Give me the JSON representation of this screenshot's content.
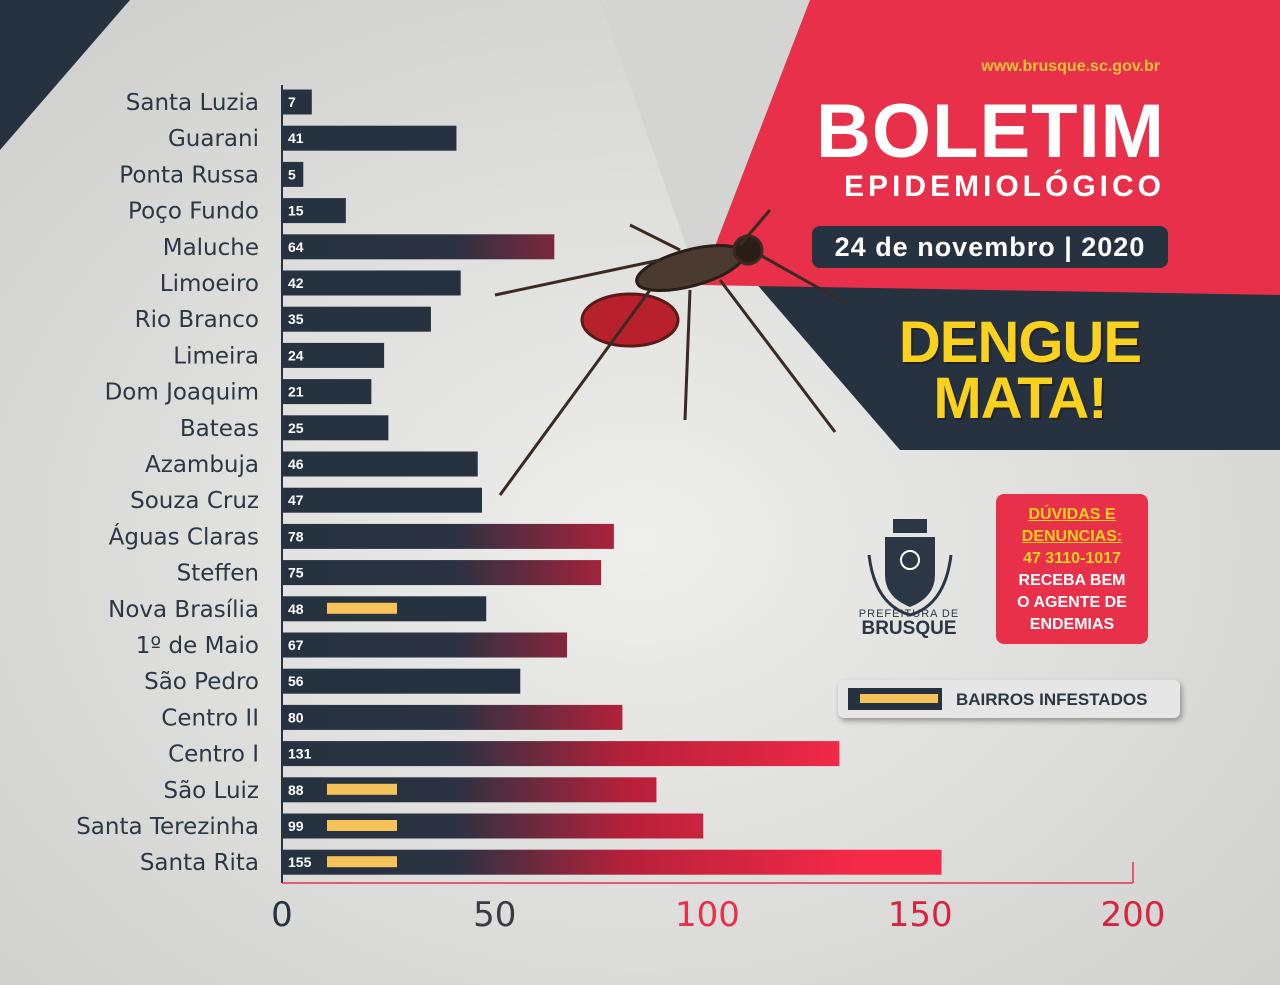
{
  "header": {
    "url": "www.brusque.sc.gov.br",
    "title": "BOLETIM",
    "subtitle": "EPIDEMIOLÓGICO",
    "date": "24 de novembro | 2020",
    "slogan_line1": "DENGUE",
    "slogan_line2": "MATA!"
  },
  "logo": {
    "line1": "PREFEITURA DE",
    "line2": "BRUSQUE"
  },
  "contact": {
    "line1": "DÚVIDAS E",
    "line2": "DENUNCIAS:",
    "phone": "47 3110-1017",
    "line3": "RECEBA BEM",
    "line4": "O AGENTE DE",
    "line5": "ENDEMIAS"
  },
  "legend": {
    "label": "BAIRROS INFESTADOS"
  },
  "colors": {
    "navy": "#263240",
    "red": "#e8304a",
    "yellow": "#f5c35a",
    "slogan": "#f8d21e"
  },
  "chart_data": {
    "type": "bar",
    "orientation": "horizontal",
    "categories": [
      "Santa Luzia",
      "Guarani",
      "Ponta Russa",
      "Poço Fundo",
      "Maluche",
      "Limoeiro",
      "Rio Branco",
      "Limeira",
      "Dom Joaquim",
      "Bateas",
      "Azambuja",
      "Souza Cruz",
      "Águas Claras",
      "Steffen",
      "Nova Brasília",
      "1º de Maio",
      "São Pedro",
      "Centro II",
      "Centro I",
      "São Luiz",
      "Santa Terezinha",
      "Santa Rita"
    ],
    "values": [
      7,
      41,
      5,
      15,
      64,
      42,
      35,
      24,
      21,
      25,
      46,
      47,
      78,
      75,
      48,
      67,
      56,
      80,
      131,
      88,
      99,
      155
    ],
    "infested": [
      false,
      false,
      false,
      false,
      false,
      false,
      false,
      false,
      false,
      false,
      false,
      false,
      false,
      false,
      true,
      false,
      false,
      false,
      false,
      true,
      true,
      true
    ],
    "xticks": [
      0,
      50,
      100,
      150,
      200
    ],
    "xlim": [
      0,
      200
    ],
    "legend_position": "right"
  }
}
